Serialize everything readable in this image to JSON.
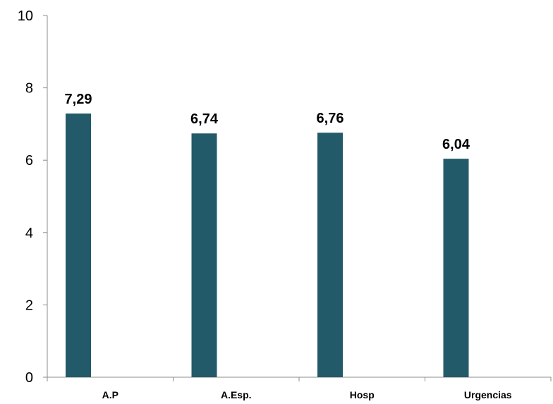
{
  "chart_data": {
    "type": "bar",
    "categories": [
      "A.P",
      "A.Esp.",
      "Hosp",
      "Urgencias"
    ],
    "values": [
      7.29,
      6.74,
      6.76,
      6.04
    ],
    "value_labels": [
      "7,29",
      "6,74",
      "6,76",
      "6,04"
    ],
    "ylim": [
      0,
      10
    ],
    "yticks": [
      0,
      2,
      4,
      6,
      8,
      10
    ],
    "ytick_labels": [
      "0",
      "2",
      "4",
      "6",
      "8",
      "10"
    ],
    "grid": false,
    "legend": "none",
    "bar_color": "#235a69",
    "title": "",
    "xlabel": "",
    "ylabel": ""
  }
}
